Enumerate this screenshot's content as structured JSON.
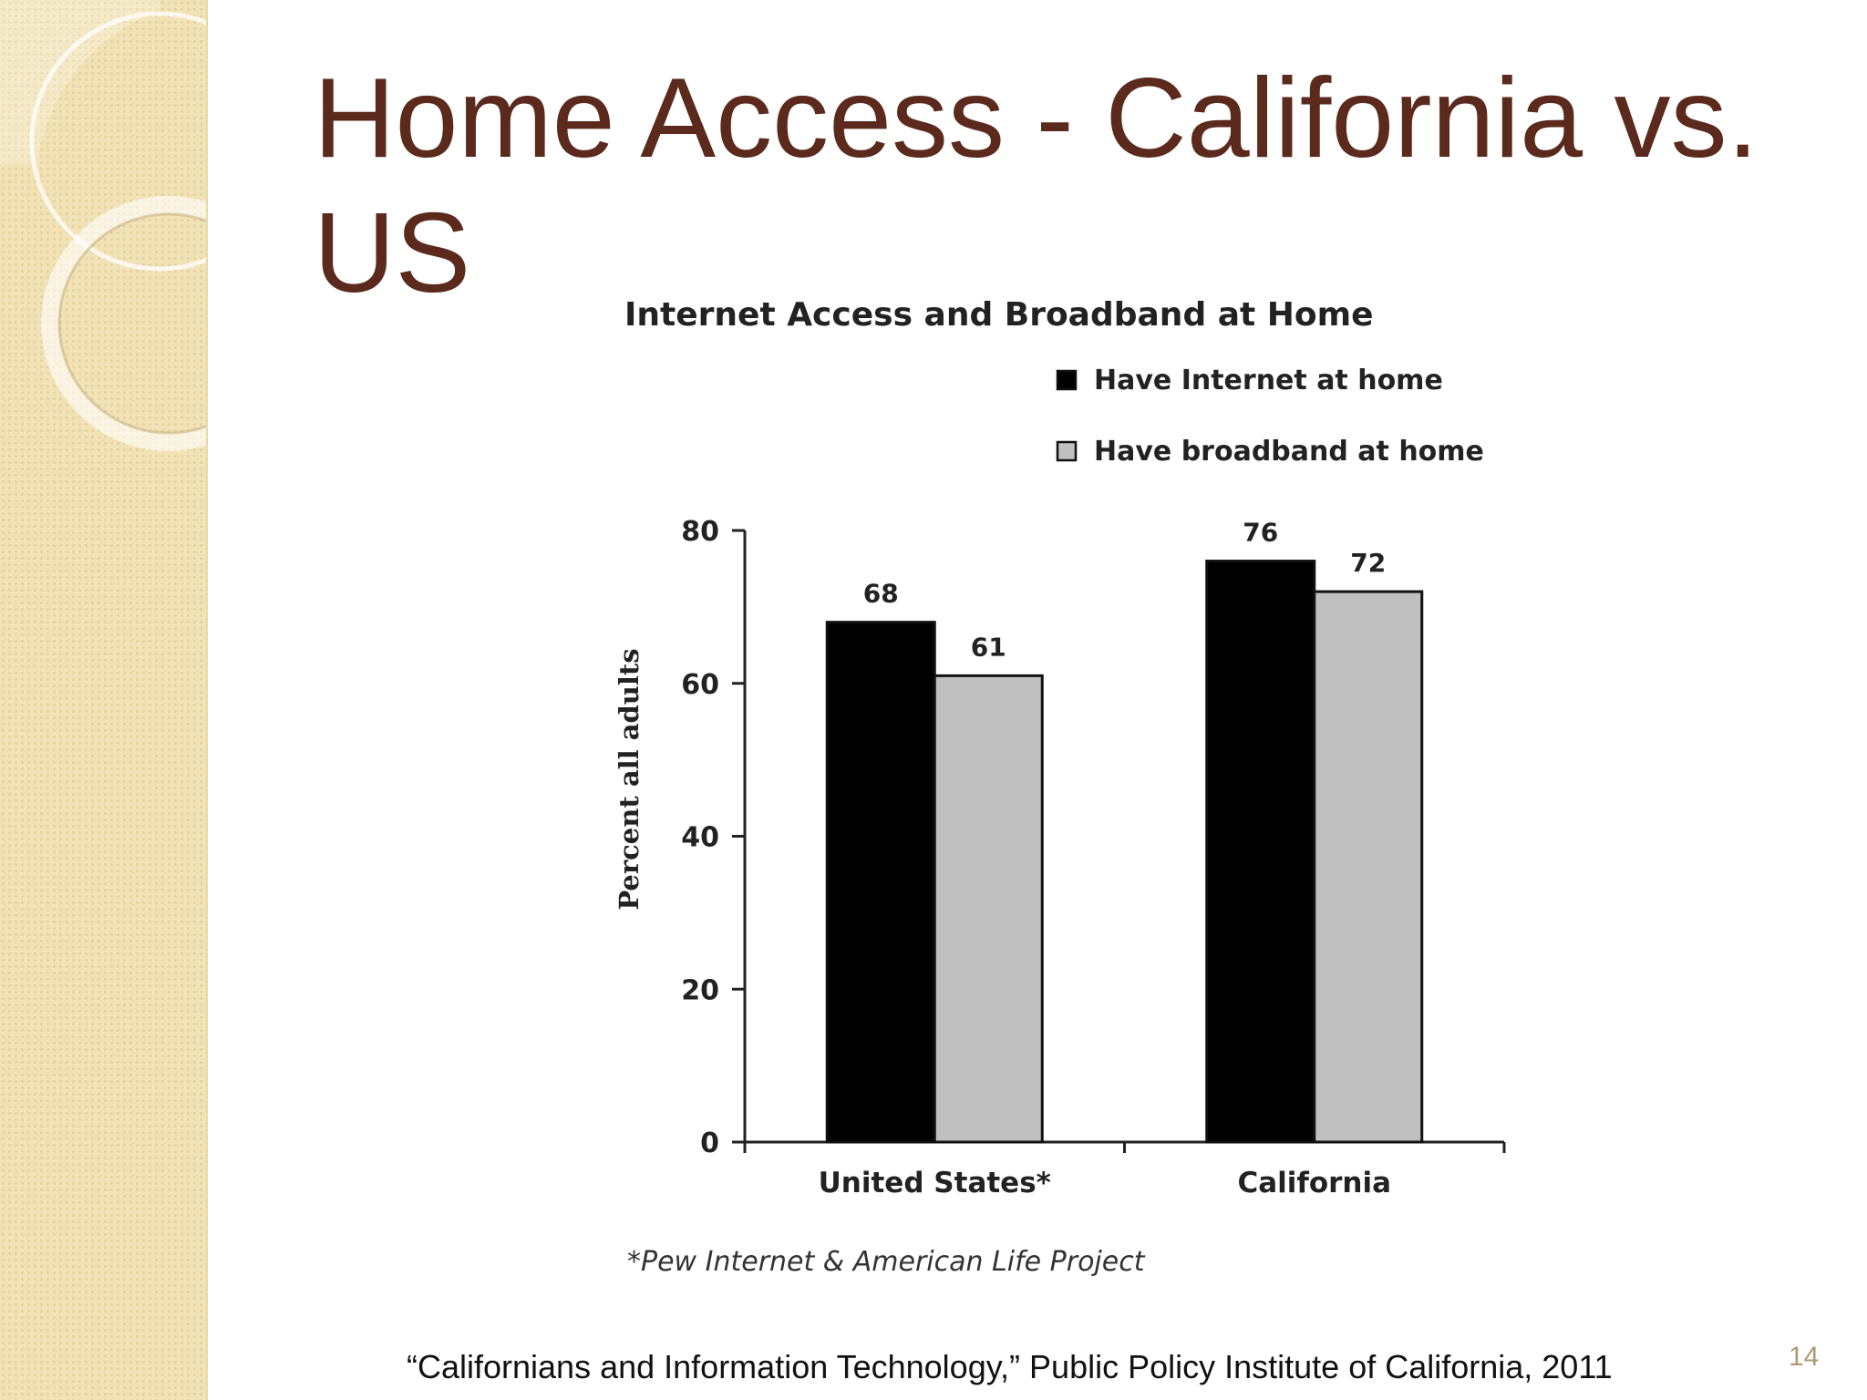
{
  "slide": {
    "title": "Home Access - California vs. US",
    "citation": "“Californians and Information Technology,” Public Policy Institute of California, 2011",
    "page_number": "14"
  },
  "colors": {
    "title": "#5b2a1c",
    "series_internet": "#000000",
    "series_broadband": "#c0c0c0",
    "sidebar": "#f2e3b6"
  },
  "chart_data": {
    "type": "bar",
    "title": "Internet Access and Broadband at Home",
    "ylabel": "Percent all adults",
    "xlabel": "",
    "categories": [
      "United States*",
      "California"
    ],
    "series": [
      {
        "name": "Have Internet at home",
        "values": [
          68,
          76
        ]
      },
      {
        "name": "Have broadband at home",
        "values": [
          61,
          72
        ]
      }
    ],
    "ylim": [
      0,
      80
    ],
    "yticks": [
      0,
      20,
      40,
      60,
      80
    ],
    "grid": false,
    "legend": "top-right",
    "footnote": "*Pew Internet & American Life Project"
  }
}
